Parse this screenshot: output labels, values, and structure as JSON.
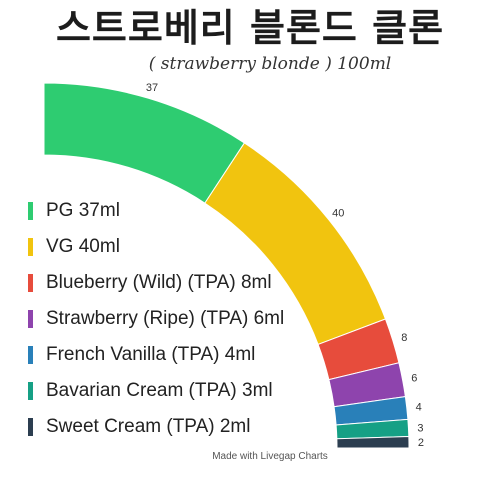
{
  "chart_data": {
    "type": "pie",
    "title": "스트로베리 블론드 클론",
    "subtitle": "( strawberry blonde ) 100ml",
    "credit": "Made with Livegap Charts",
    "categories": [
      "PG 37ml",
      "VG 40ml",
      "Blueberry (Wild) (TPA) 8ml",
      "Strawberry (Ripe) (TPA) 6ml",
      "French Vanilla (TPA)  4ml",
      "Bavarian Cream (TPA)  3ml",
      "Sweet Cream (TPA)  2ml"
    ],
    "values": [
      37,
      40,
      8,
      6,
      4,
      3,
      2
    ],
    "colors": [
      "#2ecc71",
      "#f1c40f",
      "#e74c3c",
      "#8e44ad",
      "#2980b9",
      "#16a085",
      "#2c3e50"
    ],
    "legend_position": "left"
  }
}
